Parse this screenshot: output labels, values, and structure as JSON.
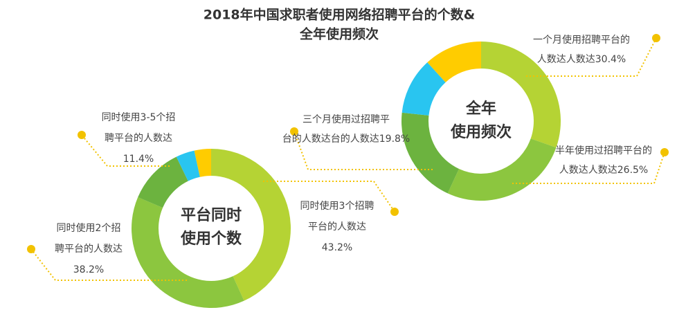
{
  "chart_data": [
    {
      "type": "donut",
      "title": [
        "2018年中国求职者使用网络招聘平台的个数&",
        "全年使用频次"
      ],
      "center_text": [
        "平台同时",
        "使用个数"
      ],
      "categories": [
        [
          "同时使用3个招聘",
          "平台的人数达"
        ],
        [
          "同时使用2个招",
          "聘平台的人数达"
        ],
        [
          "同时使用3-5个招",
          "聘平台的人数达"
        ],
        null,
        null
      ],
      "values": [
        43.2,
        38.2,
        11.4,
        3.8,
        3.4
      ],
      "value_labels": [
        "43.2%",
        "38.2%",
        "11.4%",
        null,
        null
      ],
      "colors": [
        "#b5d334",
        "#8cc63f",
        "#6cb33f",
        "#29c5f0",
        "#ffcc00"
      ]
    },
    {
      "type": "donut",
      "center_text": [
        "全年",
        "使用频次"
      ],
      "categories": [
        [
          "一个月使用招聘平台的",
          "人数达"
        ],
        [
          "半年使用过招聘平台的",
          "人数达"
        ],
        [
          "三个月使用过招聘平",
          "台的人数达"
        ],
        null,
        null
      ],
      "values": [
        30.4,
        26.5,
        19.8,
        11.5,
        11.8
      ],
      "value_labels": [
        "30.4%",
        "26.5%",
        "19.8%",
        null,
        null
      ],
      "colors": [
        "#b5d334",
        "#8cc63f",
        "#6cb33f",
        "#29c5f0",
        "#ffcc00"
      ]
    }
  ]
}
